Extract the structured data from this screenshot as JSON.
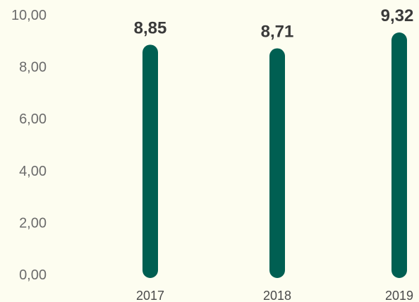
{
  "page": {
    "background": "#fdfdf0"
  },
  "chart_data": {
    "type": "bar",
    "categories": [
      "2017",
      "2018",
      "2019"
    ],
    "values": [
      8.85,
      8.71,
      9.32
    ],
    "value_labels": [
      "8,85",
      "8,71",
      "9,32"
    ],
    "title": "",
    "xlabel": "",
    "ylabel": "",
    "ylim": [
      0,
      10
    ],
    "y_ticks": [
      0,
      2,
      4,
      6,
      8,
      10
    ],
    "y_tick_labels": [
      "0,00",
      "2,00",
      "4,00",
      "6,00",
      "8,00",
      "10,00"
    ],
    "bar_color": "#005f52",
    "grid": false,
    "legend": "none"
  }
}
